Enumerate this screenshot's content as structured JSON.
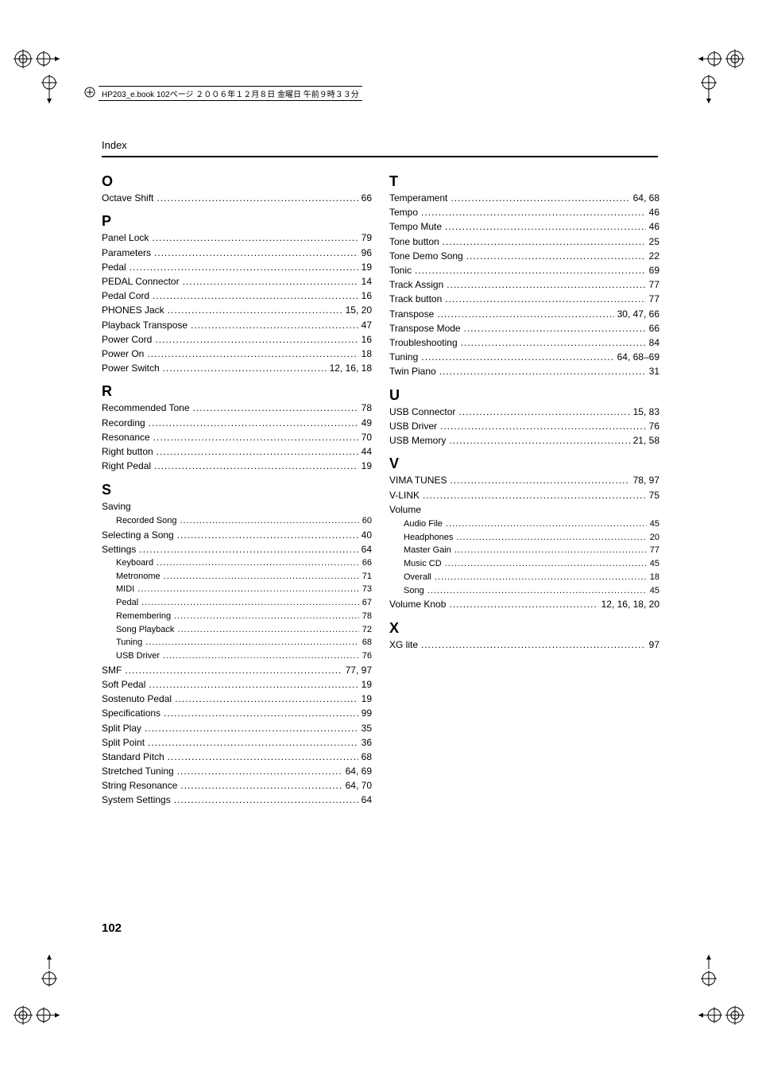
{
  "header_text": "HP203_e.book 102ページ ２００６年１２月８日 金曜日 午前９時３３分",
  "running_head": "Index",
  "page_number": "102",
  "columns": {
    "left": [
      {
        "type": "letter",
        "value": "O"
      },
      {
        "type": "entry",
        "label": "Octave Shift",
        "page": "66"
      },
      {
        "type": "letter",
        "value": "P"
      },
      {
        "type": "entry",
        "label": "Panel Lock",
        "page": "79"
      },
      {
        "type": "entry",
        "label": "Parameters",
        "page": "96"
      },
      {
        "type": "entry",
        "label": "Pedal",
        "page": "19"
      },
      {
        "type": "entry",
        "label": "PEDAL Connector",
        "page": "14"
      },
      {
        "type": "entry",
        "label": "Pedal Cord",
        "page": "16"
      },
      {
        "type": "entry",
        "label": "PHONES Jack",
        "page": "15, 20"
      },
      {
        "type": "entry",
        "label": "Playback Transpose",
        "page": "47"
      },
      {
        "type": "entry",
        "label": "Power Cord",
        "page": "16"
      },
      {
        "type": "entry",
        "label": "Power On",
        "page": "18"
      },
      {
        "type": "entry",
        "label": "Power Switch",
        "page": "12, 16, 18"
      },
      {
        "type": "letter",
        "value": "R"
      },
      {
        "type": "entry",
        "label": "Recommended Tone",
        "page": "78"
      },
      {
        "type": "entry",
        "label": "Recording",
        "page": "49"
      },
      {
        "type": "entry",
        "label": "Resonance",
        "page": "70"
      },
      {
        "type": "entry",
        "label": "Right button",
        "page": "44"
      },
      {
        "type": "entry",
        "label": "Right Pedal",
        "page": "19"
      },
      {
        "type": "letter",
        "value": "S"
      },
      {
        "type": "sublabel",
        "label": "Saving"
      },
      {
        "type": "entry",
        "indent": true,
        "label": "Recorded Song",
        "page": "60"
      },
      {
        "type": "entry",
        "label": "Selecting a Song",
        "page": "40"
      },
      {
        "type": "entry",
        "label": "Settings",
        "page": "64"
      },
      {
        "type": "entry",
        "indent": true,
        "label": "Keyboard",
        "page": "66"
      },
      {
        "type": "entry",
        "indent": true,
        "label": "Metronome",
        "page": "71"
      },
      {
        "type": "entry",
        "indent": true,
        "label": "MIDI",
        "page": "73"
      },
      {
        "type": "entry",
        "indent": true,
        "label": "Pedal",
        "page": "67"
      },
      {
        "type": "entry",
        "indent": true,
        "label": "Remembering",
        "page": "78"
      },
      {
        "type": "entry",
        "indent": true,
        "label": "Song Playback",
        "page": "72"
      },
      {
        "type": "entry",
        "indent": true,
        "label": "Tuning",
        "page": "68"
      },
      {
        "type": "entry",
        "indent": true,
        "label": "USB Driver",
        "page": "76"
      },
      {
        "type": "entry",
        "label": "SMF",
        "page": "77, 97"
      },
      {
        "type": "entry",
        "label": "Soft Pedal",
        "page": "19"
      },
      {
        "type": "entry",
        "label": "Sostenuto Pedal",
        "page": "19"
      },
      {
        "type": "entry",
        "label": "Specifications",
        "page": "99"
      },
      {
        "type": "entry",
        "label": "Split Play",
        "page": "35"
      },
      {
        "type": "entry",
        "label": "Split Point",
        "page": "36"
      },
      {
        "type": "entry",
        "label": "Standard Pitch",
        "page": "68"
      },
      {
        "type": "entry",
        "label": "Stretched Tuning",
        "page": "64, 69"
      },
      {
        "type": "entry",
        "label": "String Resonance",
        "page": "64, 70"
      },
      {
        "type": "entry",
        "label": "System Settings",
        "page": "64"
      }
    ],
    "right": [
      {
        "type": "letter",
        "value": "T"
      },
      {
        "type": "entry",
        "label": "Temperament",
        "page": "64, 68"
      },
      {
        "type": "entry",
        "label": "Tempo",
        "page": "46"
      },
      {
        "type": "entry",
        "label": "Tempo Mute",
        "page": "46"
      },
      {
        "type": "entry",
        "label": "Tone button",
        "page": "25"
      },
      {
        "type": "entry",
        "label": "Tone Demo Song",
        "page": "22"
      },
      {
        "type": "entry",
        "label": "Tonic",
        "page": "69"
      },
      {
        "type": "entry",
        "label": "Track Assign",
        "page": "77"
      },
      {
        "type": "entry",
        "label": "Track button",
        "page": "77"
      },
      {
        "type": "entry",
        "label": "Transpose",
        "page": "30, 47, 66"
      },
      {
        "type": "entry",
        "label": "Transpose Mode",
        "page": "66"
      },
      {
        "type": "entry",
        "label": "Troubleshooting",
        "page": "84"
      },
      {
        "type": "entry",
        "label": "Tuning",
        "page": "64, 68–69"
      },
      {
        "type": "entry",
        "label": "Twin Piano",
        "page": "31"
      },
      {
        "type": "letter",
        "value": "U"
      },
      {
        "type": "entry",
        "label": "USB Connector",
        "page": "15, 83"
      },
      {
        "type": "entry",
        "label": "USB Driver",
        "page": "76"
      },
      {
        "type": "entry",
        "label": "USB Memory",
        "page": "21, 58"
      },
      {
        "type": "letter",
        "value": "V"
      },
      {
        "type": "entry",
        "label": "VIMA TUNES",
        "page": "78, 97"
      },
      {
        "type": "entry",
        "label": "V-LINK",
        "page": "75"
      },
      {
        "type": "sublabel",
        "label": "Volume"
      },
      {
        "type": "entry",
        "indent": true,
        "label": "Audio File",
        "page": "45"
      },
      {
        "type": "entry",
        "indent": true,
        "label": "Headphones",
        "page": "20"
      },
      {
        "type": "entry",
        "indent": true,
        "label": "Master Gain",
        "page": "77"
      },
      {
        "type": "entry",
        "indent": true,
        "label": "Music CD",
        "page": "45"
      },
      {
        "type": "entry",
        "indent": true,
        "label": "Overall",
        "page": "18"
      },
      {
        "type": "entry",
        "indent": true,
        "label": "Song",
        "page": "45"
      },
      {
        "type": "entry",
        "label": "Volume Knob",
        "page": "12, 16, 18, 20"
      },
      {
        "type": "letter",
        "value": "X"
      },
      {
        "type": "entry",
        "label": "XG lite",
        "page": "97"
      }
    ]
  }
}
